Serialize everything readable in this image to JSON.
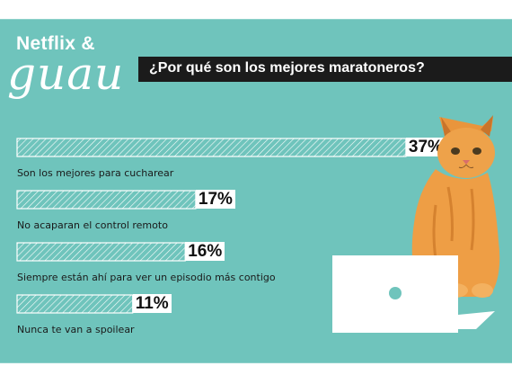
{
  "brand": {
    "line1": "Netflix &",
    "line2": "guau"
  },
  "title": "¿Por qué son los mejores maratoneros?",
  "colors": {
    "background": "#6fc4bc",
    "bar_stroke": "#ffffff",
    "title_bar": "#1b1b1b"
  },
  "chart_data": {
    "type": "bar",
    "orientation": "horizontal",
    "title": "¿Por qué son los mejores maratoneros?",
    "unit": "%",
    "categories": [
      "Son los mejores para cucharear",
      "No acaparan el control remoto",
      "Siempre están ahí para ver un episodio más contigo",
      "Nunca te van a spoilear"
    ],
    "values": [
      37,
      17,
      16,
      11
    ],
    "value_labels": [
      "37%",
      "17%",
      "16%",
      "11%"
    ],
    "xlim": [
      0,
      40
    ],
    "grid": false,
    "legend": "none"
  },
  "illustrations": {
    "cat": "cat-illustration",
    "laptop": "laptop-icon"
  }
}
